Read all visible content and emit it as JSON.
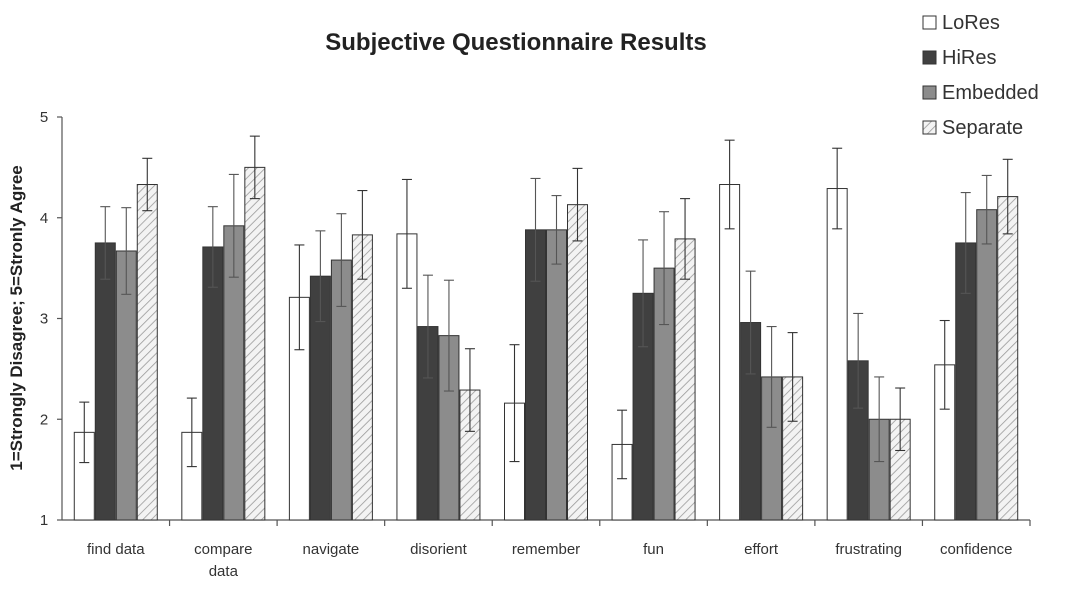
{
  "chart_data": {
    "type": "bar",
    "title": "Subjective Questionnaire Results",
    "xlabel": "",
    "ylabel": "1=Strongly Disagree; 5=Stronly Agree",
    "ylim": [
      1,
      5
    ],
    "yticks": [
      "1",
      "2",
      "3",
      "4",
      "5"
    ],
    "grid": false,
    "legend_position": "top-right",
    "categories": [
      [
        "find data"
      ],
      [
        "compare",
        "data"
      ],
      [
        "navigate"
      ],
      [
        "disorient"
      ],
      [
        "remember"
      ],
      [
        "fun"
      ],
      [
        "effort"
      ],
      [
        "frustrating"
      ],
      [
        "confidence"
      ]
    ],
    "series": [
      {
        "name": "LoRes",
        "fill": "#ffffff",
        "pattern": "solid",
        "values": [
          1.87,
          1.87,
          3.21,
          3.84,
          2.16,
          1.75,
          4.33,
          4.29,
          2.54
        ],
        "errors": [
          0.3,
          0.34,
          0.52,
          0.54,
          0.58,
          0.34,
          0.44,
          0.4,
          0.44
        ]
      },
      {
        "name": "HiRes",
        "fill": "#404040",
        "pattern": "solid",
        "values": [
          3.75,
          3.71,
          3.42,
          2.92,
          3.88,
          3.25,
          2.96,
          2.58,
          3.75
        ],
        "errors": [
          0.36,
          0.4,
          0.45,
          0.51,
          0.51,
          0.53,
          0.51,
          0.47,
          0.5
        ]
      },
      {
        "name": "Embedded",
        "fill": "#8c8c8c",
        "pattern": "solid",
        "values": [
          3.67,
          3.92,
          3.58,
          2.83,
          3.88,
          3.5,
          2.42,
          2.0,
          4.08
        ],
        "errors": [
          0.43,
          0.51,
          0.46,
          0.55,
          0.34,
          0.56,
          0.5,
          0.42,
          0.34
        ]
      },
      {
        "name": "Separate",
        "fill": "#e6e6e6",
        "pattern": "hatch",
        "values": [
          4.33,
          4.5,
          3.83,
          2.29,
          4.13,
          3.79,
          2.42,
          2.0,
          4.21
        ],
        "errors": [
          0.26,
          0.31,
          0.44,
          0.41,
          0.36,
          0.4,
          0.44,
          0.31,
          0.37
        ]
      }
    ]
  }
}
